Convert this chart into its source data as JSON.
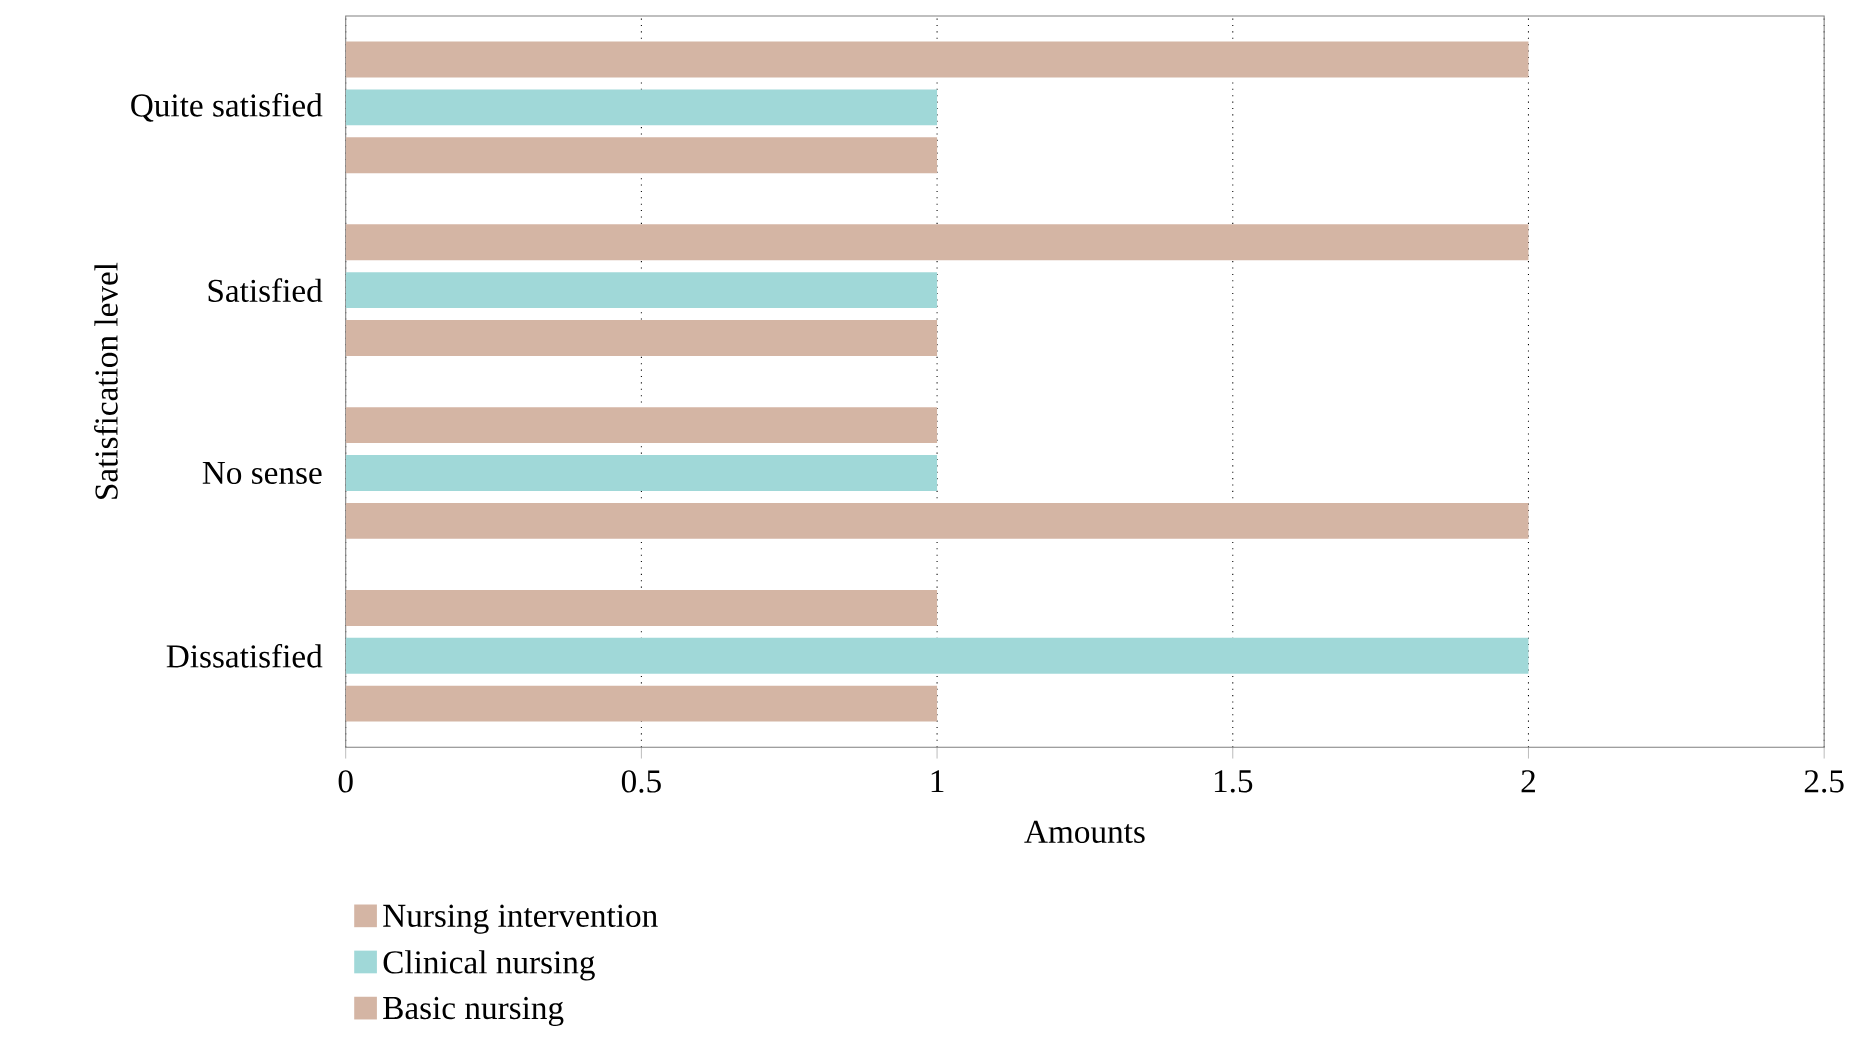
{
  "chart_data": {
    "type": "bar",
    "orientation": "horizontal",
    "xlabel": "Amounts",
    "ylabel": "Satisfication level",
    "categories": [
      "Quite satisfied",
      "Satisfied",
      "No sense",
      "Dissatisfied"
    ],
    "series": [
      {
        "name": "Nursing intervention",
        "color": "#d4b5a4",
        "values": [
          2,
          2,
          1,
          1
        ]
      },
      {
        "name": "Clinical nursing",
        "color": "#a0d8d8",
        "values": [
          1,
          1,
          1,
          2
        ]
      },
      {
        "name": "Basic nursing",
        "color": "#d4b5a4",
        "values": [
          1,
          1,
          2,
          1
        ]
      }
    ],
    "xlim": [
      0,
      2.5
    ],
    "xticks": [
      0,
      0.5,
      1,
      1.5,
      2,
      2.5
    ],
    "grid": "x",
    "legend": "bottom"
  }
}
